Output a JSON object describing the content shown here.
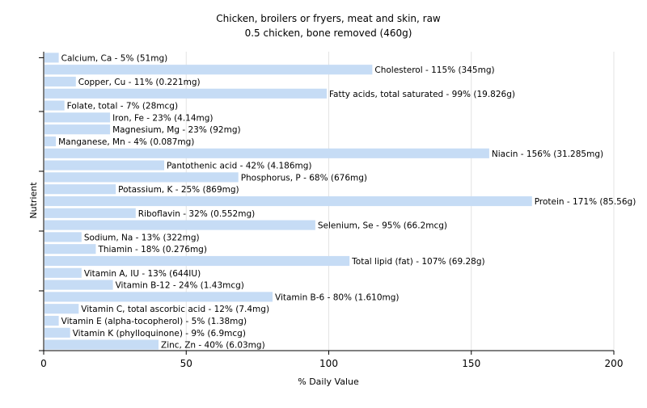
{
  "chart_data": {
    "type": "bar",
    "orientation": "horizontal",
    "title": "Chicken, broilers or fryers, meat and skin, raw",
    "subtitle": "0.5 chicken, bone removed (460g)",
    "xlabel": "% Daily Value",
    "ylabel": "Nutrient",
    "xlim": [
      0,
      200
    ],
    "xticks": [
      "0",
      "50",
      "100",
      "150",
      "200"
    ],
    "grid": true,
    "bar_color": "#c6dcf5",
    "grid_color": "#e3e3e3",
    "bars": [
      {
        "nutrient": "Calcium, Ca",
        "value": 5,
        "label": "Calcium, Ca - 5% (51mg)"
      },
      {
        "nutrient": "Cholesterol",
        "value": 115,
        "label": "Cholesterol - 115% (345mg)"
      },
      {
        "nutrient": "Copper, Cu",
        "value": 11,
        "label": "Copper, Cu - 11% (0.221mg)"
      },
      {
        "nutrient": "Fatty acids, total saturated",
        "value": 99,
        "label": "Fatty acids, total saturated - 99% (19.826g)"
      },
      {
        "nutrient": "Folate, total",
        "value": 7,
        "label": "Folate, total - 7% (28mcg)"
      },
      {
        "nutrient": "Iron, Fe",
        "value": 23,
        "label": "Iron, Fe - 23% (4.14mg)"
      },
      {
        "nutrient": "Magnesium, Mg",
        "value": 23,
        "label": "Magnesium, Mg - 23% (92mg)"
      },
      {
        "nutrient": "Manganese, Mn",
        "value": 4,
        "label": "Manganese, Mn - 4% (0.087mg)"
      },
      {
        "nutrient": "Niacin",
        "value": 156,
        "label": "Niacin - 156% (31.285mg)"
      },
      {
        "nutrient": "Pantothenic acid",
        "value": 42,
        "label": "Pantothenic acid - 42% (4.186mg)"
      },
      {
        "nutrient": "Phosphorus, P",
        "value": 68,
        "label": "Phosphorus, P - 68% (676mg)"
      },
      {
        "nutrient": "Potassium, K",
        "value": 25,
        "label": "Potassium, K - 25% (869mg)"
      },
      {
        "nutrient": "Protein",
        "value": 171,
        "label": "Protein - 171% (85.56g)"
      },
      {
        "nutrient": "Riboflavin",
        "value": 32,
        "label": "Riboflavin - 32% (0.552mg)"
      },
      {
        "nutrient": "Selenium, Se",
        "value": 95,
        "label": "Selenium, Se - 95% (66.2mcg)"
      },
      {
        "nutrient": "Sodium, Na",
        "value": 13,
        "label": "Sodium, Na - 13% (322mg)"
      },
      {
        "nutrient": "Thiamin",
        "value": 18,
        "label": "Thiamin - 18% (0.276mg)"
      },
      {
        "nutrient": "Total lipid (fat)",
        "value": 107,
        "label": "Total lipid (fat) - 107% (69.28g)"
      },
      {
        "nutrient": "Vitamin A, IU",
        "value": 13,
        "label": "Vitamin A, IU - 13% (644IU)"
      },
      {
        "nutrient": "Vitamin B-12",
        "value": 24,
        "label": "Vitamin B-12 - 24% (1.43mcg)"
      },
      {
        "nutrient": "Vitamin B-6",
        "value": 80,
        "label": "Vitamin B-6 - 80% (1.610mg)"
      },
      {
        "nutrient": "Vitamin C, total ascorbic acid",
        "value": 12,
        "label": "Vitamin C, total ascorbic acid - 12% (7.4mg)"
      },
      {
        "nutrient": "Vitamin E (alpha-tocopherol)",
        "value": 5,
        "label": "Vitamin E (alpha-tocopherol) - 5% (1.38mg)"
      },
      {
        "nutrient": "Vitamin K (phylloquinone)",
        "value": 9,
        "label": "Vitamin K (phylloquinone) - 9% (6.9mcg)"
      },
      {
        "nutrient": "Zinc, Zn",
        "value": 40,
        "label": "Zinc, Zn - 40% (6.03mg)"
      }
    ]
  }
}
